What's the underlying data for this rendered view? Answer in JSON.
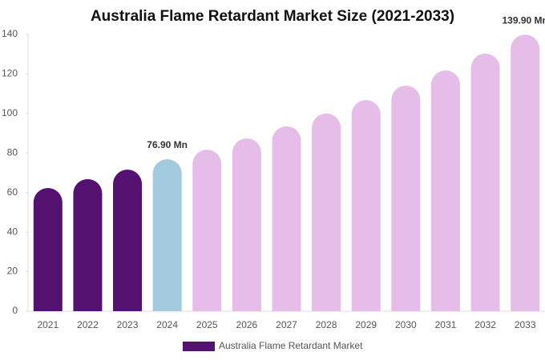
{
  "chart_data": {
    "type": "bar",
    "title": "Australia Flame Retardant Market Size (2021-2033)",
    "categories": [
      "2021",
      "2022",
      "2023",
      "2024",
      "2025",
      "2026",
      "2027",
      "2028",
      "2029",
      "2030",
      "2031",
      "2032",
      "2033"
    ],
    "series": [
      {
        "name": "Australia Flame Retardant Market",
        "color": "#541270",
        "colors": [
          "#541270",
          "#541270",
          "#541270",
          "#a3cadf",
          "#e5bde8",
          "#e5bde8",
          "#e5bde8",
          "#e5bde8",
          "#e5bde8",
          "#e5bde8",
          "#e5bde8",
          "#e5bde8",
          "#e5bde8"
        ],
        "values": [
          62.3,
          66.8,
          71.6,
          76.9,
          81.7,
          87.4,
          93.5,
          100,
          106.8,
          114.1,
          121.8,
          130.3,
          139.9
        ],
        "value_labels": [
          null,
          null,
          null,
          "76.90 Mn",
          null,
          null,
          null,
          null,
          null,
          null,
          null,
          null,
          "139.90 Mn"
        ]
      }
    ],
    "ylim": [
      0,
      140
    ],
    "yticks": [
      0,
      20,
      40,
      60,
      80,
      100,
      120,
      140
    ]
  }
}
